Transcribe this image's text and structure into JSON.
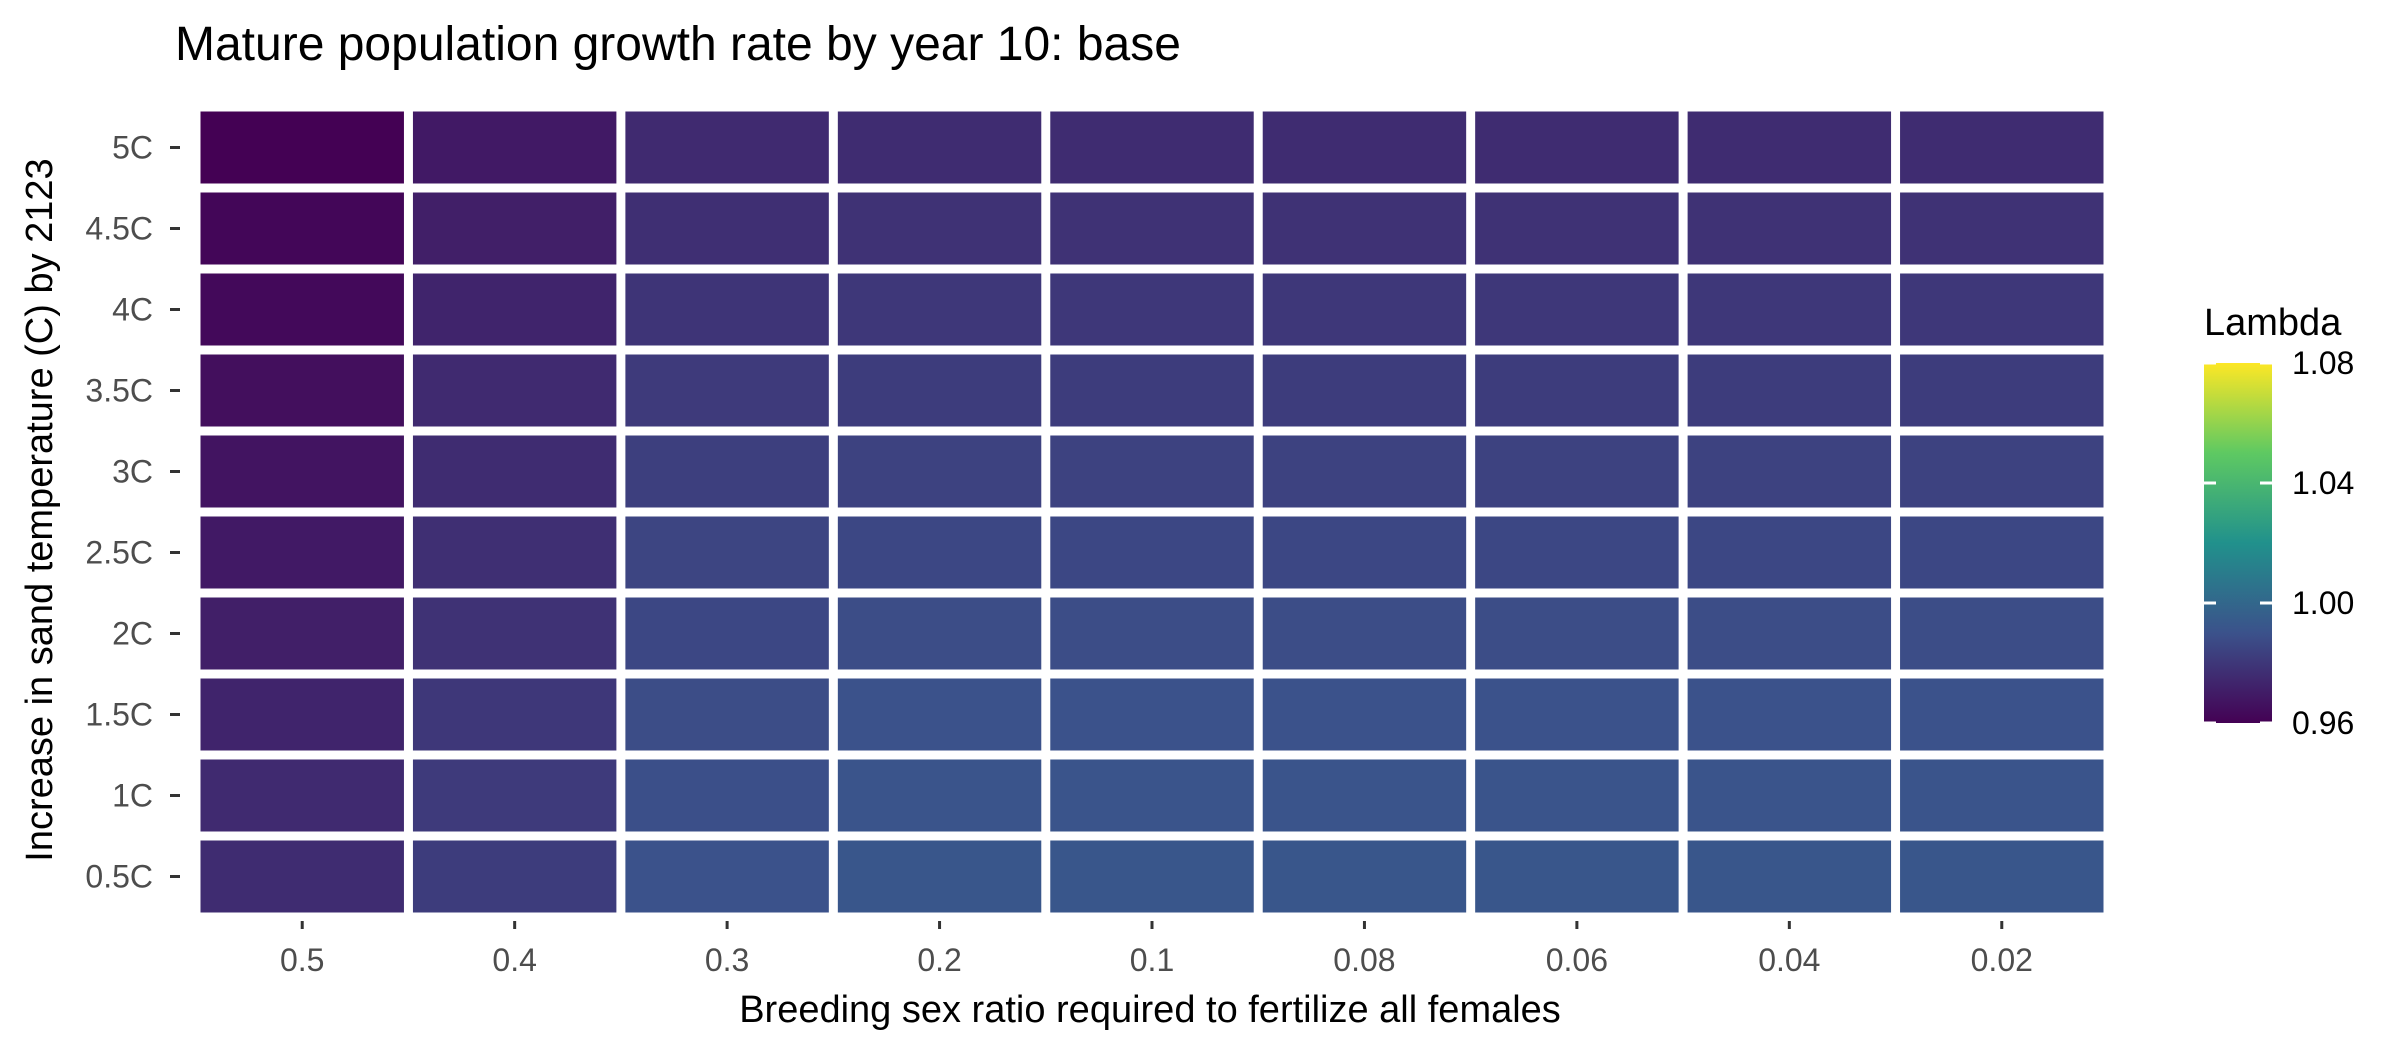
{
  "chart_data": {
    "type": "heatmap",
    "title": "Mature population growth rate by year 10: base",
    "xlabel": "Breeding sex ratio required to fertilize all females",
    "ylabel": "Increase in sand temperature (C) by 2123",
    "x_categories": [
      "0.5",
      "0.4",
      "0.3",
      "0.2",
      "0.1",
      "0.08",
      "0.06",
      "0.04",
      "0.02"
    ],
    "y_categories": [
      "0.5C",
      "1C",
      "1.5C",
      "2C",
      "2.5C",
      "3C",
      "3.5C",
      "4C",
      "4.5C",
      "5C"
    ],
    "values": [
      [
        0.976,
        0.982,
        0.99,
        0.992,
        0.992,
        0.992,
        0.992,
        0.992,
        0.992
      ],
      [
        0.975,
        0.981,
        0.989,
        0.991,
        0.991,
        0.991,
        0.991,
        0.991,
        0.991
      ],
      [
        0.973,
        0.98,
        0.988,
        0.99,
        0.99,
        0.99,
        0.99,
        0.99,
        0.99
      ],
      [
        0.971,
        0.978,
        0.986,
        0.988,
        0.988,
        0.988,
        0.988,
        0.988,
        0.988
      ],
      [
        0.969,
        0.977,
        0.985,
        0.986,
        0.986,
        0.986,
        0.986,
        0.986,
        0.986
      ],
      [
        0.967,
        0.976,
        0.983,
        0.984,
        0.984,
        0.984,
        0.984,
        0.984,
        0.984
      ],
      [
        0.965,
        0.975,
        0.981,
        0.982,
        0.982,
        0.982,
        0.982,
        0.982,
        0.982
      ],
      [
        0.963,
        0.973,
        0.979,
        0.98,
        0.98,
        0.98,
        0.98,
        0.98,
        0.98
      ],
      [
        0.962,
        0.971,
        0.977,
        0.978,
        0.978,
        0.978,
        0.978,
        0.978,
        0.978
      ],
      [
        0.96,
        0.969,
        0.975,
        0.976,
        0.976,
        0.976,
        0.976,
        0.976,
        0.976
      ]
    ],
    "legend": {
      "title": "Lambda",
      "min": 0.96,
      "max": 1.08,
      "ticks": [
        0.96,
        1.0,
        1.04,
        1.08
      ],
      "tick_labels": [
        "0.96",
        "1.00",
        "1.04",
        "1.08"
      ],
      "position": "right"
    },
    "colorscale": [
      "#440154",
      "#3b528b",
      "#21918c",
      "#5ec962",
      "#fde725"
    ],
    "tile_border_color": "#ffffff",
    "grid": false
  }
}
